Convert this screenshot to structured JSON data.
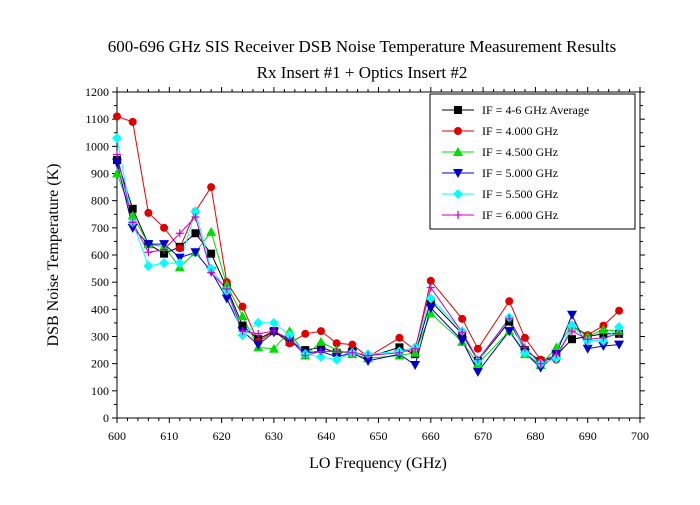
{
  "chart_data": {
    "type": "line",
    "title": "600-696 GHz SIS Receiver DSB Noise Temperature Measurement Results",
    "subtitle": "Rx Insert #1 + Optics Insert #2",
    "xlabel": "LO Frequency (GHz)",
    "ylabel": "DSB Noise Temperature (K)",
    "xlim": [
      600,
      700
    ],
    "ylim": [
      0,
      1200
    ],
    "xticks": [
      "600",
      "610",
      "620",
      "630",
      "640",
      "650",
      "660",
      "670",
      "680",
      "690",
      "700"
    ],
    "yticks": [
      "0",
      "100",
      "200",
      "300",
      "400",
      "500",
      "600",
      "700",
      "800",
      "900",
      "1000",
      "1100",
      "1200"
    ],
    "grid": false,
    "legend_position": "top-right",
    "x": [
      600,
      603,
      606,
      609,
      612,
      615,
      618,
      621,
      624,
      627,
      630,
      633,
      636,
      639,
      642,
      645,
      648,
      654,
      657,
      660,
      666,
      669,
      675,
      678,
      681,
      684,
      687,
      690,
      693,
      696
    ],
    "series": [
      {
        "name": "IF = 4-6 GHz Average",
        "color": "#000000",
        "marker": "square",
        "values": [
          950,
          770,
          640,
          605,
          630,
          680,
          605,
          480,
          340,
          290,
          320,
          280,
          250,
          260,
          240,
          245,
          225,
          260,
          235,
          430,
          310,
          210,
          355,
          250,
          210,
          230,
          290,
          300,
          310,
          310
        ]
      },
      {
        "name": "IF = 4.000 GHz",
        "color": "#e00000",
        "marker": "circle",
        "values": [
          1110,
          1090,
          755,
          700,
          625,
          760,
          850,
          500,
          410,
          280,
          320,
          275,
          310,
          320,
          275,
          270,
          225,
          295,
          250,
          505,
          365,
          255,
          430,
          295,
          215,
          215,
          340,
          305,
          340,
          395
        ]
      },
      {
        "name": "IF = 4.500 GHz",
        "color": "#00dd00",
        "marker": "triangle-up",
        "values": [
          900,
          745,
          640,
          630,
          555,
          610,
          685,
          490,
          375,
          260,
          255,
          320,
          230,
          280,
          250,
          235,
          220,
          230,
          240,
          385,
          280,
          200,
          320,
          235,
          195,
          260,
          340,
          300,
          325,
          320
        ]
      },
      {
        "name": "IF = 5.000 GHz",
        "color": "#0000cc",
        "marker": "triangle-down",
        "values": [
          940,
          700,
          640,
          640,
          590,
          610,
          540,
          440,
          320,
          270,
          315,
          290,
          240,
          245,
          225,
          240,
          210,
          235,
          195,
          405,
          285,
          170,
          320,
          240,
          185,
          235,
          380,
          255,
          265,
          270
        ]
      },
      {
        "name": "IF = 5.500 GHz",
        "color": "#00ffff",
        "marker": "diamond",
        "values": [
          1030,
          720,
          560,
          570,
          570,
          760,
          550,
          470,
          305,
          350,
          350,
          305,
          235,
          225,
          215,
          240,
          235,
          245,
          260,
          440,
          320,
          210,
          370,
          240,
          200,
          220,
          340,
          285,
          285,
          335
        ]
      },
      {
        "name": "IF = 6.000 GHz",
        "color": "#cc00cc",
        "marker": "plus",
        "values": [
          970,
          720,
          610,
          620,
          680,
          740,
          535,
          475,
          320,
          310,
          320,
          290,
          230,
          245,
          245,
          240,
          230,
          240,
          255,
          480,
          315,
          215,
          365,
          260,
          200,
          235,
          320,
          290,
          295,
          310
        ]
      }
    ]
  }
}
